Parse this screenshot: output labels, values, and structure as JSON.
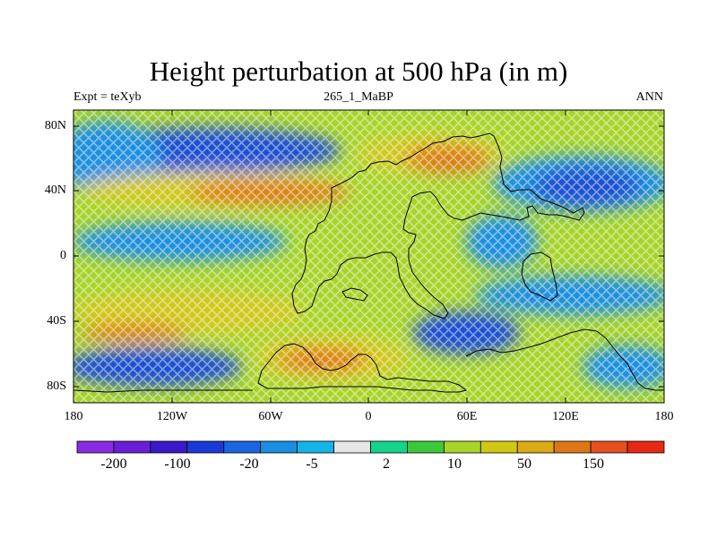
{
  "title": "Height perturbation at 500 hPa (in m)",
  "subtitle_left": "Expt = teXyb",
  "subtitle_center": "265_1_MaBP",
  "subtitle_right": "ANN",
  "y_axis_ticks": [
    "80N",
    "40N",
    "0",
    "40S",
    "80S"
  ],
  "x_axis_ticks": [
    "180",
    "120W",
    "60W",
    "0",
    "60E",
    "120E",
    "180"
  ],
  "colorbar": {
    "labels": [
      "-200",
      "-100",
      "-20",
      "-5",
      "2",
      "10",
      "50",
      "150"
    ],
    "colors": [
      "#8a2be2",
      "#6a1ed8",
      "#3a1ac8",
      "#1a3ad8",
      "#1a66e0",
      "#1a8ee0",
      "#14b4e6",
      "#e6e6e6",
      "#14d48a",
      "#3cc83c",
      "#a8d428",
      "#d2c814",
      "#dcaa14",
      "#dc7814",
      "#e6501e",
      "#e62814"
    ]
  },
  "map_colors": {
    "strong_negative": "#1c4fd0",
    "weak_negative": "#1f8fe0",
    "neutral": "#a8d42a",
    "weak_positive": "#d2c81a",
    "strong_positive": "#dc7a14",
    "coastline": "#000000"
  }
}
